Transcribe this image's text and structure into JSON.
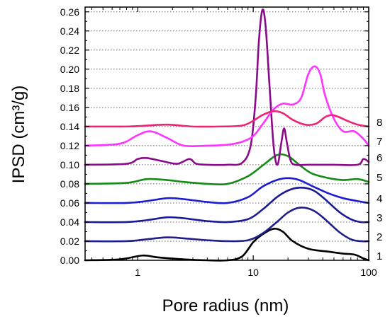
{
  "chart_data": {
    "type": "line",
    "xlabel": "Pore radius (nm)",
    "ylabel": "IPSD (cm³/g)",
    "xscale": "log",
    "xlim": [
      0.35,
      100
    ],
    "ylim": [
      0,
      0.265
    ],
    "grid": "horizontal dotted",
    "x_ticks": [
      {
        "value": 1,
        "label": "1"
      },
      {
        "value": 10,
        "label": "10"
      },
      {
        "value": 100,
        "label": "100"
      }
    ],
    "y_ticks": [
      {
        "value": 0.0,
        "label": "0.00"
      },
      {
        "value": 0.02,
        "label": "0.02"
      },
      {
        "value": 0.04,
        "label": "0.04"
      },
      {
        "value": 0.06,
        "label": "0.06"
      },
      {
        "value": 0.08,
        "label": "0.08"
      },
      {
        "value": 0.1,
        "label": "0.10"
      },
      {
        "value": 0.12,
        "label": "0.12"
      },
      {
        "value": 0.14,
        "label": "0.14"
      },
      {
        "value": 0.16,
        "label": "0.16"
      },
      {
        "value": 0.18,
        "label": "0.18"
      },
      {
        "value": 0.2,
        "label": "0.20"
      },
      {
        "value": 0.22,
        "label": "0.22"
      },
      {
        "value": 0.24,
        "label": "0.24"
      },
      {
        "value": 0.26,
        "label": "0.26"
      }
    ],
    "series": [
      {
        "label": "1",
        "color": "#000000",
        "x": [
          0.35,
          0.7,
          1.1,
          1.5,
          2.5,
          4,
          6,
          8,
          10,
          12,
          15,
          18,
          22,
          30,
          45,
          60,
          75,
          90,
          100
        ],
        "y": [
          0.0,
          0.001,
          0.005,
          0.003,
          0.001,
          0.0,
          0.0,
          0.004,
          0.019,
          0.027,
          0.033,
          0.03,
          0.02,
          0.012,
          0.009,
          0.007,
          0.006,
          0.002,
          0.0
        ]
      },
      {
        "label": "2",
        "color": "#1e1e8c",
        "x": [
          0.35,
          0.8,
          1.2,
          1.8,
          2.5,
          4,
          6,
          9,
          12,
          16,
          20,
          25,
          32,
          40,
          55,
          70,
          85,
          100
        ],
        "y": [
          0.02,
          0.02,
          0.022,
          0.024,
          0.023,
          0.021,
          0.02,
          0.021,
          0.028,
          0.04,
          0.05,
          0.055,
          0.053,
          0.045,
          0.03,
          0.022,
          0.02,
          0.02
        ]
      },
      {
        "label": "3",
        "color": "#1a1a96",
        "x": [
          0.35,
          0.8,
          1.2,
          1.8,
          2.5,
          4,
          6,
          9,
          12,
          16,
          20,
          25,
          32,
          40,
          55,
          70,
          85,
          100
        ],
        "y": [
          0.04,
          0.04,
          0.042,
          0.045,
          0.044,
          0.041,
          0.04,
          0.043,
          0.053,
          0.066,
          0.073,
          0.076,
          0.074,
          0.066,
          0.051,
          0.043,
          0.04,
          0.04
        ]
      },
      {
        "label": "4",
        "color": "#1c1cd4",
        "x": [
          0.35,
          0.8,
          1.2,
          1.8,
          2.5,
          4,
          6,
          9,
          12,
          16,
          20,
          25,
          32,
          45,
          60,
          80,
          100
        ],
        "y": [
          0.06,
          0.06,
          0.062,
          0.065,
          0.064,
          0.061,
          0.06,
          0.066,
          0.077,
          0.084,
          0.086,
          0.084,
          0.078,
          0.07,
          0.065,
          0.062,
          0.06
        ]
      },
      {
        "label": "5",
        "color": "#168a16",
        "x": [
          0.35,
          0.8,
          1.2,
          1.8,
          2.5,
          4,
          6,
          9,
          12,
          16,
          20,
          25,
          32,
          45,
          60,
          80,
          100
        ],
        "y": [
          0.08,
          0.081,
          0.085,
          0.084,
          0.082,
          0.08,
          0.08,
          0.088,
          0.099,
          0.11,
          0.109,
          0.1,
          0.091,
          0.086,
          0.084,
          0.085,
          0.082
        ]
      },
      {
        "label": "6",
        "color": "#8b0a8b",
        "x": [
          0.35,
          0.8,
          1.0,
          1.2,
          1.6,
          2.2,
          2.8,
          3.2,
          4,
          6,
          8,
          9.5,
          10.5,
          11.2,
          12,
          12.8,
          13.8,
          15,
          16.2,
          17.5,
          18.5,
          19.5,
          21,
          23,
          30,
          50,
          80,
          90,
          100
        ],
        "y": [
          0.1,
          0.101,
          0.106,
          0.107,
          0.104,
          0.101,
          0.106,
          0.101,
          0.1,
          0.1,
          0.102,
          0.12,
          0.17,
          0.23,
          0.262,
          0.245,
          0.185,
          0.12,
          0.1,
          0.123,
          0.138,
          0.124,
          0.105,
          0.1,
          0.1,
          0.1,
          0.1,
          0.106,
          0.103
        ]
      },
      {
        "label": "7",
        "color": "#ff33ff",
        "x": [
          0.35,
          0.7,
          1.0,
          1.3,
          1.8,
          2.5,
          4,
          6,
          8,
          10,
          12,
          15,
          18,
          22,
          26,
          30,
          34,
          38,
          42,
          50,
          60,
          75,
          90,
          100
        ],
        "y": [
          0.12,
          0.122,
          0.131,
          0.135,
          0.128,
          0.12,
          0.12,
          0.121,
          0.124,
          0.13,
          0.142,
          0.158,
          0.164,
          0.163,
          0.17,
          0.195,
          0.203,
          0.195,
          0.172,
          0.148,
          0.135,
          0.135,
          0.127,
          0.12
        ]
      },
      {
        "label": "8",
        "color": "#ee2277",
        "x": [
          0.35,
          0.8,
          1.2,
          1.8,
          3,
          5,
          8,
          10,
          12,
          15,
          18,
          22,
          28,
          35,
          42,
          48,
          55,
          65,
          80,
          100
        ],
        "y": [
          0.14,
          0.14,
          0.141,
          0.142,
          0.14,
          0.14,
          0.141,
          0.146,
          0.152,
          0.156,
          0.154,
          0.147,
          0.142,
          0.143,
          0.15,
          0.152,
          0.15,
          0.146,
          0.142,
          0.14
        ]
      }
    ]
  }
}
